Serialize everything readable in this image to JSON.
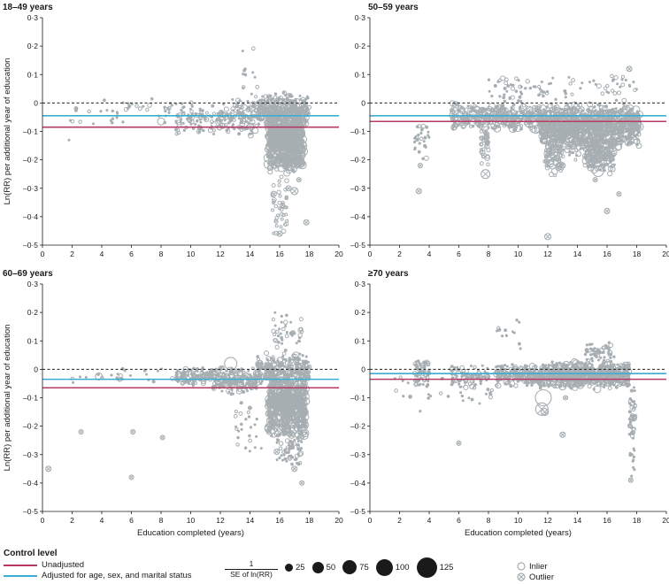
{
  "chart_data": [
    {
      "type": "scatter",
      "title": "18–49 years",
      "xlim": [
        0,
        20
      ],
      "ylim": [
        -0.5,
        0.3
      ],
      "ylabel": "Ln(RR) per additional year of education",
      "xlabel": "",
      "reference_line": 0,
      "unadjusted": -0.085,
      "adjusted": -0.045,
      "clusters": [
        {
          "x": [
            15.2,
            17.6
          ],
          "y": [
            -0.25,
            0.0
          ],
          "n": 900,
          "r": [
            1,
            5
          ]
        },
        {
          "x": [
            14.5,
            18.0
          ],
          "y": [
            -0.08,
            0.04
          ],
          "n": 300,
          "r": [
            1,
            3
          ]
        },
        {
          "x": [
            12.0,
            14.5
          ],
          "y": [
            -0.12,
            0.02
          ],
          "n": 120,
          "r": [
            1,
            3.5
          ]
        },
        {
          "x": [
            9.0,
            12.0
          ],
          "y": [
            -0.12,
            0.01
          ],
          "n": 90,
          "r": [
            1,
            3
          ]
        },
        {
          "x": [
            5.0,
            9.0
          ],
          "y": [
            -0.08,
            0.03
          ],
          "n": 28,
          "r": [
            1,
            2.5
          ]
        },
        {
          "x": [
            1.5,
            5.0
          ],
          "y": [
            -0.15,
            0.05
          ],
          "n": 16,
          "r": [
            1,
            2
          ]
        },
        {
          "x": [
            15.5,
            16.5
          ],
          "y": [
            -0.48,
            -0.25
          ],
          "n": 40,
          "r": [
            1.5,
            2.5
          ]
        },
        {
          "x": [
            13.5,
            14.5
          ],
          "y": [
            -0.05,
            0.23
          ],
          "n": 14,
          "r": [
            1,
            2
          ]
        }
      ],
      "big": [
        [
          17.0,
          -0.19,
          8
        ],
        [
          17.3,
          -0.21,
          6
        ],
        [
          8.0,
          -0.065,
          4
        ]
      ],
      "outliers": [
        [
          15.6,
          -0.32,
          3
        ],
        [
          17.0,
          -0.31,
          4
        ],
        [
          16.6,
          -0.3,
          3
        ],
        [
          17.8,
          -0.42,
          3
        ],
        [
          16.0,
          -0.46,
          3
        ],
        [
          17.5,
          -0.21,
          2.5
        ],
        [
          17.3,
          -0.27,
          2.5
        ],
        [
          16.2,
          -0.36,
          2.5
        ]
      ]
    },
    {
      "type": "scatter",
      "title": "50–59 years",
      "xlim": [
        0,
        20
      ],
      "ylim": [
        -0.5,
        0.3
      ],
      "ylabel": "",
      "xlabel": "",
      "reference_line": 0,
      "unadjusted": -0.065,
      "adjusted": -0.045,
      "clusters": [
        {
          "x": [
            11.5,
            18.2
          ],
          "y": [
            -0.16,
            0.0
          ],
          "n": 1100,
          "r": [
            1,
            4.5
          ]
        },
        {
          "x": [
            14.5,
            16.5
          ],
          "y": [
            -0.25,
            -0.1
          ],
          "n": 250,
          "r": [
            1,
            4
          ]
        },
        {
          "x": [
            5.5,
            11.5
          ],
          "y": [
            -0.1,
            0.0
          ],
          "n": 350,
          "r": [
            1,
            4.5
          ]
        },
        {
          "x": [
            7.5,
            8.0
          ],
          "y": [
            -0.22,
            -0.05
          ],
          "n": 40,
          "r": [
            1.5,
            3
          ]
        },
        {
          "x": [
            11.8,
            13.0
          ],
          "y": [
            -0.26,
            -0.08
          ],
          "n": 90,
          "r": [
            1.5,
            3.5
          ]
        },
        {
          "x": [
            3.0,
            4.0
          ],
          "y": [
            -0.2,
            -0.05
          ],
          "n": 30,
          "r": [
            1,
            2.5
          ]
        },
        {
          "x": [
            13.0,
            14.5
          ],
          "y": [
            -0.22,
            -0.05
          ],
          "n": 60,
          "r": [
            1,
            3
          ]
        },
        {
          "x": [
            8.0,
            18.0
          ],
          "y": [
            0.0,
            0.1
          ],
          "n": 90,
          "r": [
            1,
            2.5
          ]
        }
      ],
      "big": [
        [
          6.0,
          -0.03,
          7
        ],
        [
          9.3,
          -0.06,
          6
        ],
        [
          15.4,
          -0.24,
          6
        ],
        [
          12.5,
          -0.08,
          5
        ]
      ],
      "outliers": [
        [
          3.3,
          -0.31,
          3
        ],
        [
          3.4,
          -0.22,
          2.5
        ],
        [
          7.8,
          -0.25,
          5
        ],
        [
          12.0,
          -0.47,
          3.5
        ],
        [
          16.0,
          -0.38,
          3
        ],
        [
          17.5,
          0.12,
          3
        ],
        [
          13.0,
          -0.22,
          3
        ],
        [
          12.7,
          -0.23,
          2.5
        ],
        [
          15.2,
          -0.27,
          2.5
        ],
        [
          16.8,
          -0.32,
          2.5
        ]
      ]
    },
    {
      "type": "scatter",
      "title": "60–69 years",
      "xlim": [
        0,
        20
      ],
      "ylim": [
        -0.5,
        0.3
      ],
      "ylabel": "Ln(RR) per additional year of education",
      "xlabel": "Education completed (years)",
      "reference_line": 0,
      "unadjusted": -0.065,
      "adjusted": -0.035,
      "clusters": [
        {
          "x": [
            15.2,
            17.8
          ],
          "y": [
            -0.25,
            0.0
          ],
          "n": 800,
          "r": [
            1,
            4.5
          ]
        },
        {
          "x": [
            14.5,
            18.0
          ],
          "y": [
            -0.06,
            0.06
          ],
          "n": 250,
          "r": [
            1,
            3.5
          ]
        },
        {
          "x": [
            11.5,
            14.5
          ],
          "y": [
            -0.09,
            0.01
          ],
          "n": 200,
          "r": [
            1,
            3.5
          ]
        },
        {
          "x": [
            9.0,
            11.5
          ],
          "y": [
            -0.06,
            0.01
          ],
          "n": 110,
          "r": [
            1,
            3
          ]
        },
        {
          "x": [
            2.0,
            9.0
          ],
          "y": [
            -0.06,
            0.01
          ],
          "n": 24,
          "r": [
            1,
            2.5
          ]
        },
        {
          "x": [
            13.0,
            15.0
          ],
          "y": [
            -0.3,
            -0.1
          ],
          "n": 26,
          "r": [
            1,
            2
          ]
        },
        {
          "x": [
            15.8,
            17.5
          ],
          "y": [
            -0.35,
            -0.22
          ],
          "n": 60,
          "r": [
            1,
            3
          ]
        },
        {
          "x": [
            15.5,
            17.5
          ],
          "y": [
            0.05,
            0.22
          ],
          "n": 40,
          "r": [
            1,
            2.5
          ]
        }
      ],
      "big": [
        [
          12.7,
          0.02,
          7
        ],
        [
          16.8,
          -0.09,
          6
        ],
        [
          3.8,
          -0.025,
          4
        ]
      ],
      "outliers": [
        [
          0.4,
          -0.35,
          3
        ],
        [
          2.6,
          -0.22,
          2.5
        ],
        [
          6.1,
          -0.22,
          2.5
        ],
        [
          6.0,
          -0.38,
          2.5
        ],
        [
          8.1,
          -0.24,
          2.5
        ],
        [
          16.8,
          -0.23,
          4
        ],
        [
          15.8,
          -0.29,
          3
        ],
        [
          17.0,
          -0.35,
          3
        ],
        [
          17.5,
          -0.4,
          2.5
        ]
      ]
    },
    {
      "type": "scatter",
      "title": "≥70 years",
      "xlim": [
        0,
        20
      ],
      "ylim": [
        -0.5,
        0.3
      ],
      "ylabel": "",
      "xlabel": "Education completed (years)",
      "reference_line": 0,
      "unadjusted": -0.035,
      "adjusted": -0.015,
      "clusters": [
        {
          "x": [
            11.5,
            17.5
          ],
          "y": [
            -0.07,
            0.03
          ],
          "n": 700,
          "r": [
            1,
            4
          ]
        },
        {
          "x": [
            8.5,
            11.5
          ],
          "y": [
            -0.06,
            0.02
          ],
          "n": 200,
          "r": [
            1,
            3.5
          ]
        },
        {
          "x": [
            3.0,
            4.0
          ],
          "y": [
            -0.07,
            0.05
          ],
          "n": 60,
          "r": [
            1,
            3
          ]
        },
        {
          "x": [
            5.5,
            8.0
          ],
          "y": [
            -0.07,
            0.02
          ],
          "n": 80,
          "r": [
            1,
            3
          ]
        },
        {
          "x": [
            17.5,
            17.9
          ],
          "y": [
            -0.38,
            -0.05
          ],
          "n": 60,
          "r": [
            1,
            2.5
          ]
        },
        {
          "x": [
            1.5,
            9.0
          ],
          "y": [
            -0.15,
            0.0
          ],
          "n": 30,
          "r": [
            1,
            2
          ]
        },
        {
          "x": [
            14.5,
            16.5
          ],
          "y": [
            0.02,
            0.1
          ],
          "n": 60,
          "r": [
            1,
            2.5
          ]
        },
        {
          "x": [
            8.5,
            11.0
          ],
          "y": [
            0.05,
            0.2
          ],
          "n": 12,
          "r": [
            1,
            2
          ]
        }
      ],
      "big": [
        [
          11.7,
          -0.1,
          9
        ],
        [
          6.2,
          -0.05,
          4
        ],
        [
          13.0,
          -0.06,
          4
        ]
      ],
      "outliers": [
        [
          11.6,
          -0.14,
          7
        ],
        [
          11.8,
          -0.15,
          4
        ],
        [
          13.0,
          -0.23,
          3
        ],
        [
          6.0,
          -0.26,
          2.5
        ],
        [
          17.6,
          -0.39,
          2.5
        ],
        [
          13.2,
          -0.1,
          2.5
        ]
      ]
    }
  ],
  "axes": {
    "x_ticks": [
      "0",
      "2",
      "4",
      "6",
      "8",
      "10",
      "12",
      "14",
      "16",
      "18",
      "20"
    ],
    "y_ticks": [
      "0·3",
      "0·2",
      "0·1",
      "0",
      "–0·1",
      "–0·2",
      "–0·3",
      "–0·4",
      "–0·5"
    ]
  },
  "colors": {
    "points": "#a7aeb2",
    "unadjusted": "#b83a62",
    "adjusted": "#39aed3",
    "reference": "#222222"
  },
  "legend": {
    "title": "Control level",
    "unadjusted_label": "Unadjusted",
    "adjusted_label": "Adjusted for age, sex, and marital status",
    "size_title_num": "1",
    "size_title_den": "SE of ln(RR)",
    "sizes": [
      {
        "label": "25"
      },
      {
        "label": "50"
      },
      {
        "label": "75"
      },
      {
        "label": "100"
      },
      {
        "label": "125"
      }
    ],
    "inlier_label": "Inlier",
    "outlier_label": "Outlier"
  }
}
